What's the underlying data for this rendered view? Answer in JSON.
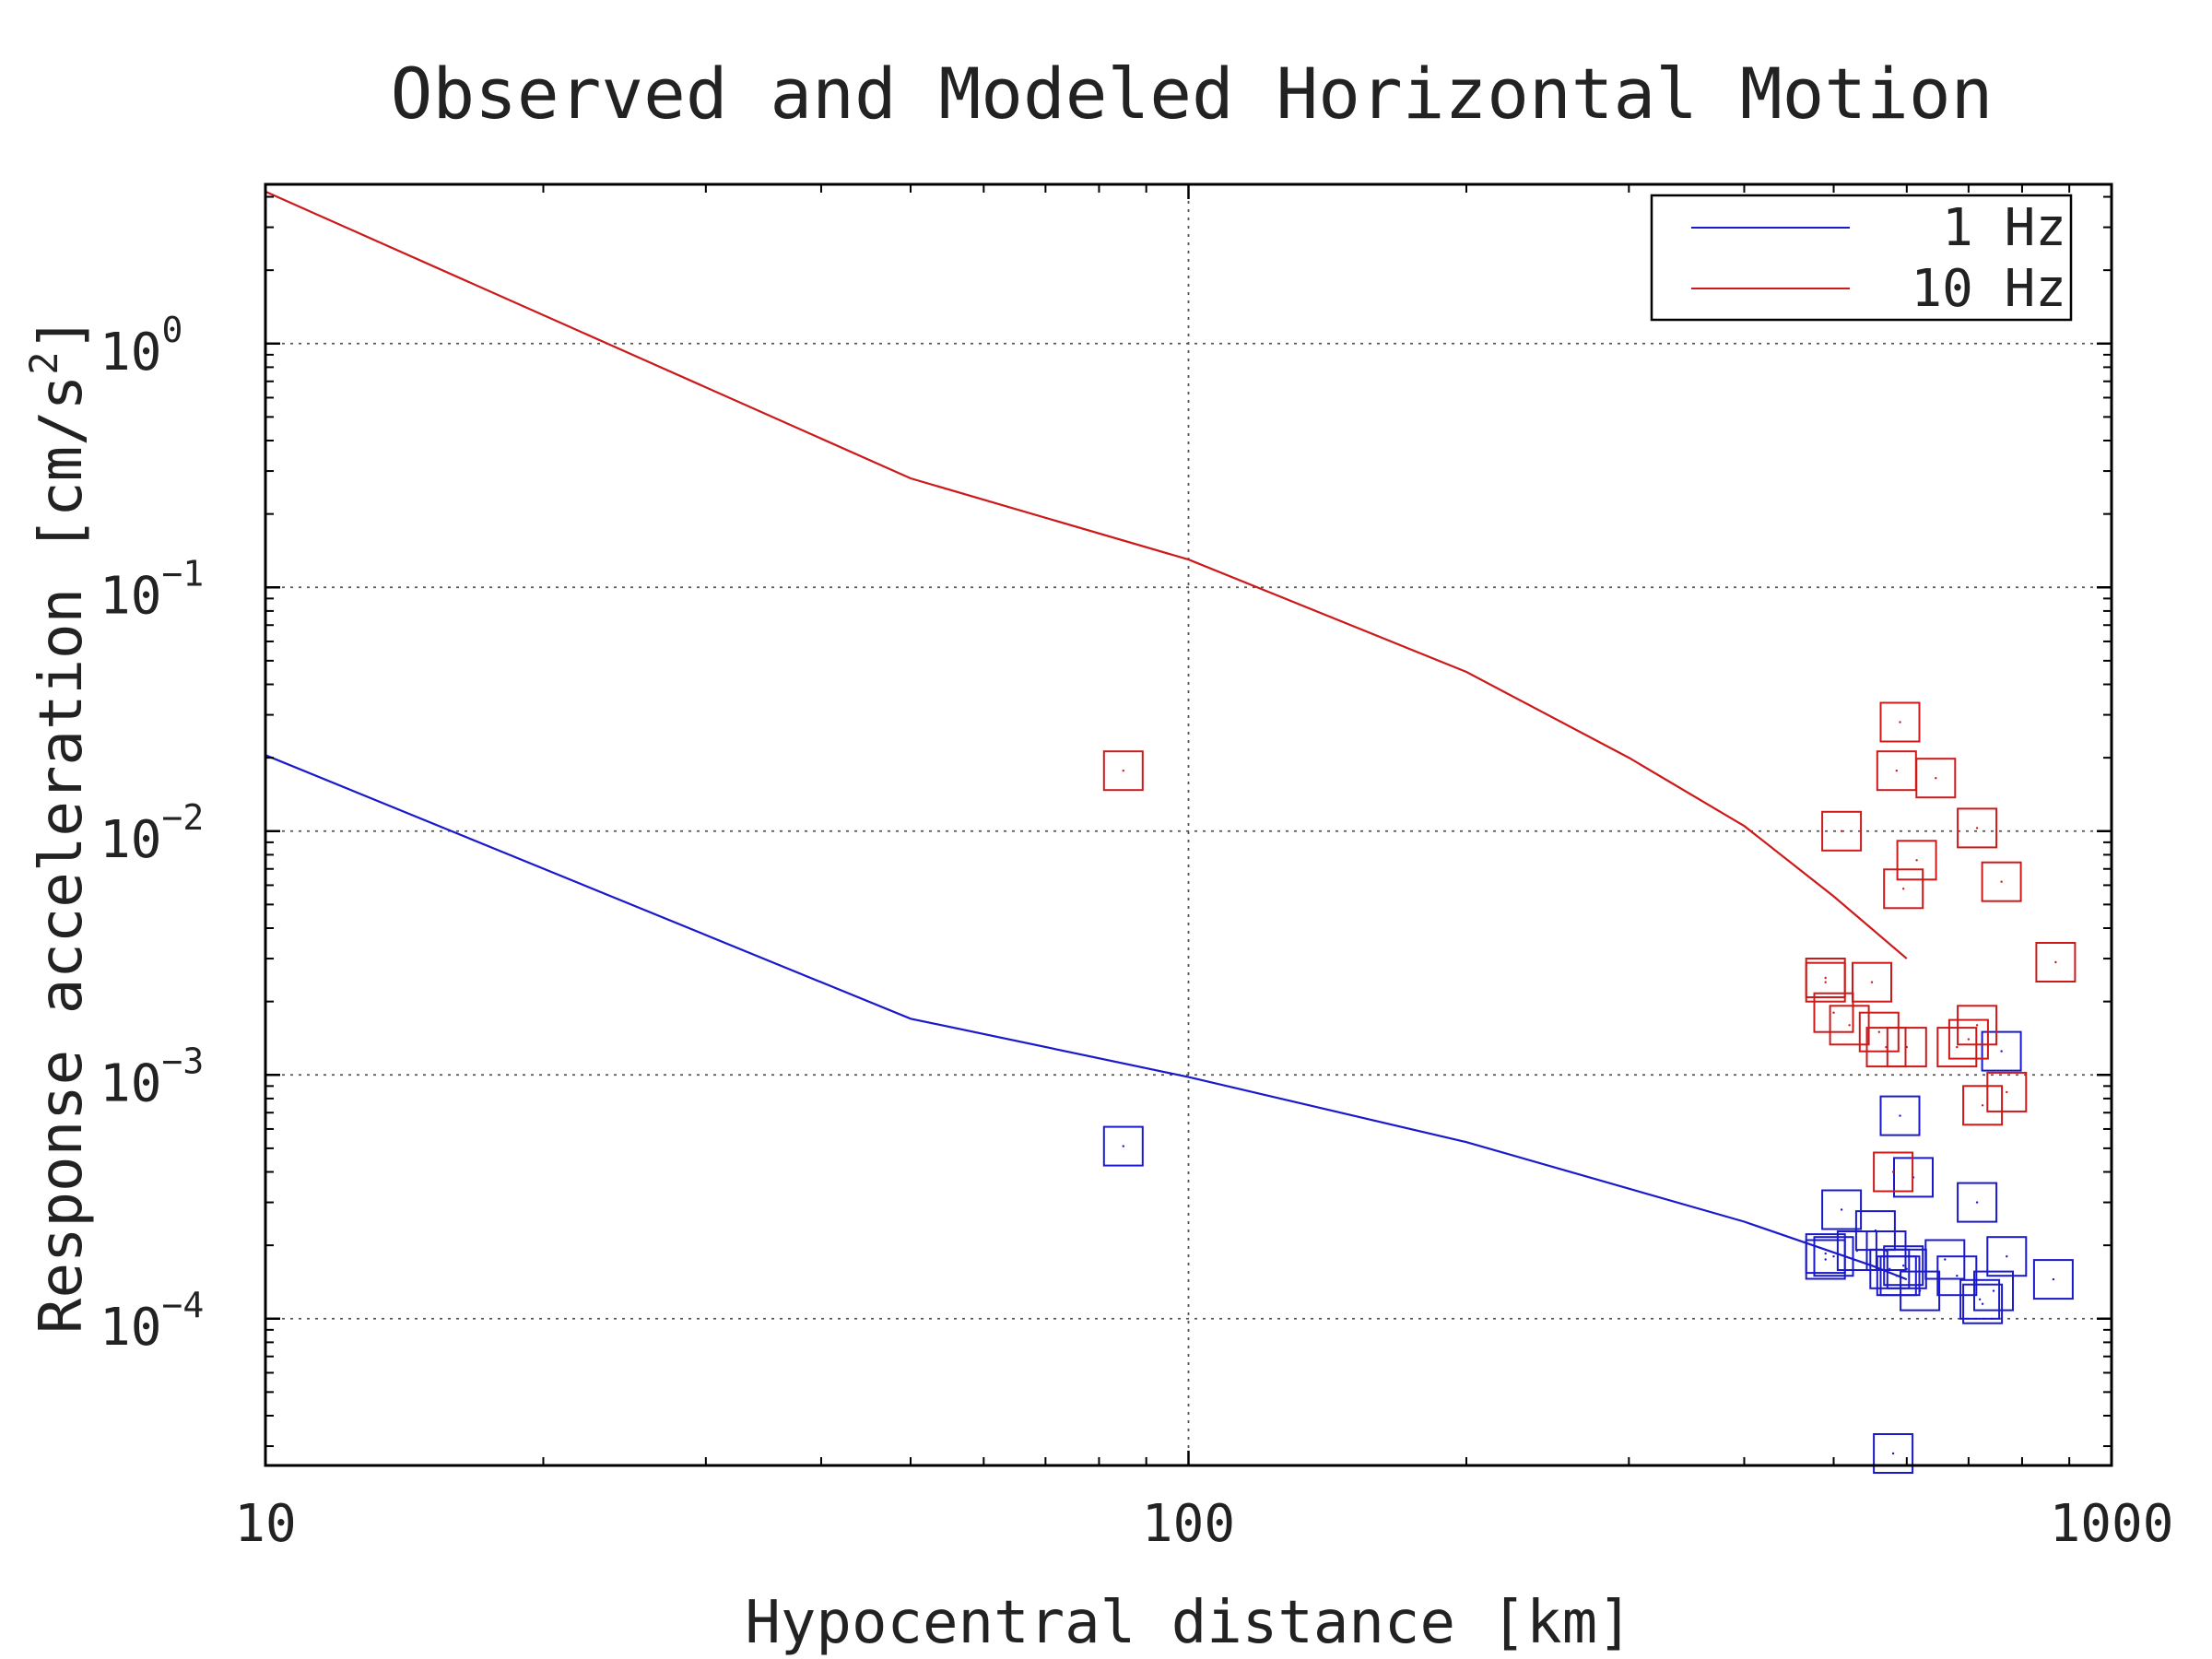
{
  "chart_data": {
    "type": "scatter",
    "title": "Observed and Modeled Horizontal Motion",
    "xlabel": "Hypocentral distance [km]",
    "ylabel": {
      "text": "Response acceleration [cm/s",
      "sup": "2",
      "close": "]"
    },
    "xscale": "log",
    "yscale": "log",
    "xlim": [
      10,
      1000
    ],
    "ylim": [
      2.5e-05,
      4.5
    ],
    "grid": true,
    "legend_position": "top-right",
    "x_ticks": [
      {
        "value": 10,
        "label": "10"
      },
      {
        "value": 100,
        "label": "100"
      },
      {
        "value": 1000,
        "label": "1000"
      }
    ],
    "y_ticks": [
      {
        "value": 1,
        "base": "10",
        "exp": "0"
      },
      {
        "value": 0.1,
        "base": "10",
        "exp": "−1"
      },
      {
        "value": 0.01,
        "base": "10",
        "exp": "−2"
      },
      {
        "value": 0.001,
        "base": "10",
        "exp": "−3"
      },
      {
        "value": 0.0001,
        "base": "10",
        "exp": "−4"
      }
    ],
    "series": [
      {
        "name": "1 Hz",
        "color": "#1a1acc",
        "line": {
          "x": [
            10,
            50,
            100,
            200,
            400,
            550,
            600
          ],
          "y": [
            0.0205,
            0.0017,
            0.00098,
            0.00053,
            0.00025,
            0.000165,
            0.000145
          ]
        },
        "points": {
          "x": [
            85,
            490,
            490,
            500,
            510,
            530,
            555,
            570,
            575,
            580,
            585,
            590,
            590,
            595,
            600,
            610,
            620,
            660,
            680,
            715,
            720,
            725,
            745,
            760,
            770,
            865
          ],
          "y": [
            0.00051,
            0.000175,
            0.000185,
            0.00018,
            0.00028,
            0.00019,
            0.00023,
            0.00019,
            0.00016,
            2.8e-05,
            0.00015,
            0.00068,
            0.00015,
            0.000165,
            0.00016,
            0.00038,
            0.00013,
            0.000175,
            0.00015,
            0.0003,
            0.00012,
            0.000115,
            0.00013,
            0.00125,
            0.00018,
            0.000145
          ]
        }
      },
      {
        "name": "10 Hz",
        "color": "#cc1a1a",
        "line": {
          "x": [
            10,
            50,
            100,
            200,
            300,
            400,
            500,
            600
          ],
          "y": [
            4.2,
            0.28,
            0.13,
            0.045,
            0.02,
            0.0105,
            0.0054,
            0.003
          ]
        },
        "points": {
          "x": [
            85,
            490,
            490,
            500,
            510,
            520,
            550,
            560,
            570,
            580,
            585,
            590,
            595,
            600,
            615,
            645,
            680,
            700,
            715,
            715,
            725,
            760,
            770,
            870
          ],
          "y": [
            0.0177,
            0.0025,
            0.0024,
            0.0018,
            0.01,
            0.0016,
            0.0024,
            0.0015,
            0.0013,
            0.0004,
            0.0177,
            0.028,
            0.0058,
            0.0013,
            0.0076,
            0.0165,
            0.0013,
            0.0014,
            0.0016,
            0.0103,
            0.00075,
            0.0062,
            0.00085,
            0.0029
          ]
        }
      }
    ]
  }
}
